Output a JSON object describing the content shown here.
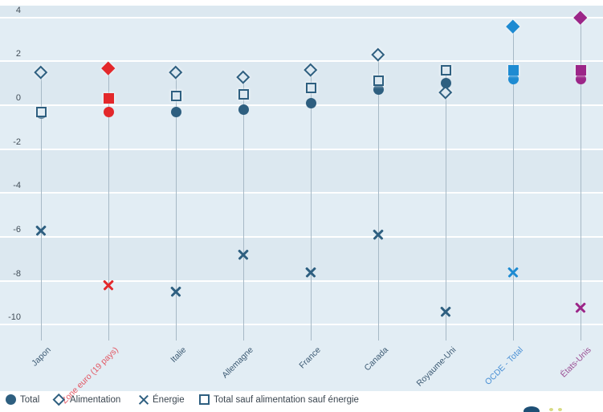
{
  "chart": {
    "plot": {
      "bg_light": "#e2edf4",
      "bg_dark": "#dce8f0",
      "gridline_color": "#ffffff",
      "stem_color": "#a7b9c6"
    },
    "axis": {
      "tick_labels": [
        "4",
        "2",
        "0",
        "-2",
        "-4",
        "-6",
        "-8",
        "-10"
      ],
      "tick_values": [
        4,
        2,
        0,
        -2,
        -4,
        -6,
        -8,
        -10
      ],
      "label_color": "#414d57"
    },
    "legend": {
      "marker_color": "#2e5f80",
      "text_color": "#3b4650",
      "items": [
        {
          "label": "Total",
          "marker": "circle"
        },
        {
          "label": "Alimentation",
          "marker": "diamond"
        },
        {
          "label": "Énergie",
          "marker": "x"
        },
        {
          "label": "Total sauf alimentation sauf énergie",
          "marker": "square"
        }
      ]
    },
    "logo": {
      "circle_color": "#1d4f75",
      "dot_color": "#c9cf59"
    }
  },
  "chart_data": {
    "type": "scatter",
    "title": "",
    "categories": [
      "Japon",
      "Zone euro (19 pays)",
      "Italie",
      "Allemagne",
      "France",
      "Canada",
      "Royaume-Uni",
      "OCDE - Total",
      "États-Unis"
    ],
    "category_styles": [
      {
        "marker_color": "#2e5f80",
        "label_color": "#3c5a73",
        "filled": false
      },
      {
        "marker_color": "#e3282b",
        "label_color": "#e25763",
        "filled": true
      },
      {
        "marker_color": "#2e5f80",
        "label_color": "#3c5a73",
        "filled": false
      },
      {
        "marker_color": "#2e5f80",
        "label_color": "#3c5a73",
        "filled": false
      },
      {
        "marker_color": "#2e5f80",
        "label_color": "#3c5a73",
        "filled": false
      },
      {
        "marker_color": "#2e5f80",
        "label_color": "#3c5a73",
        "filled": false
      },
      {
        "marker_color": "#2e5f80",
        "label_color": "#3c5a73",
        "filled": false
      },
      {
        "marker_color": "#1e8bd2",
        "label_color": "#4a90d5",
        "filled": true
      },
      {
        "marker_color": "#9c2688",
        "label_color": "#9b4f94",
        "filled": true
      }
    ],
    "series": [
      {
        "name": "Total",
        "marker": "circle",
        "values": [
          -0.4,
          -0.3,
          -0.3,
          -0.2,
          0.1,
          0.7,
          1.0,
          1.2,
          1.2
        ]
      },
      {
        "name": "Alimentation",
        "marker": "diamond",
        "values": [
          1.5,
          1.7,
          1.5,
          1.3,
          1.6,
          2.3,
          0.6,
          3.6,
          4.0
        ]
      },
      {
        "name": "Énergie",
        "marker": "x",
        "values": [
          -5.7,
          -8.2,
          -8.5,
          -6.8,
          -7.6,
          -5.9,
          -9.4,
          -7.6,
          -9.2
        ]
      },
      {
        "name": "Total sauf alimentation sauf énergie",
        "marker": "square",
        "values": [
          -0.3,
          0.3,
          0.4,
          0.5,
          0.8,
          1.1,
          1.6,
          1.6,
          1.6
        ]
      }
    ],
    "ylim": [
      -10.6,
      4.4
    ],
    "y_ticks": [
      4,
      2,
      0,
      -2,
      -4,
      -6,
      -8,
      -10
    ],
    "grid": true,
    "legend_position": "bottom"
  }
}
